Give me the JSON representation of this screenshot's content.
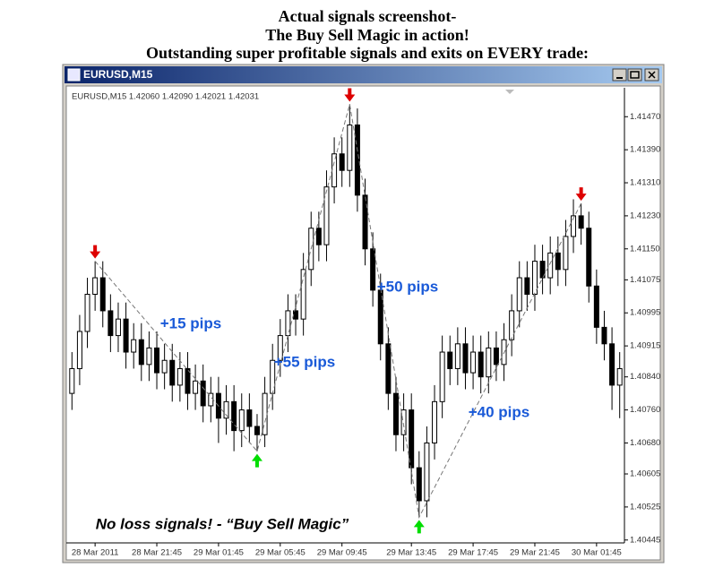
{
  "chart_data": {
    "type": "candlestick",
    "title": [
      "Actual signals screenshot-",
      "The Buy Sell Magic in action!",
      "Outstanding super profitable signals and exits on EVERY trade:"
    ],
    "window_title": "EURUSD,M15",
    "info": "EURUSD,M15  1.42060 1.42090 1.42021 1.42031",
    "categories": [
      null,
      null,
      null,
      "28 Mar 2011",
      null,
      null,
      null,
      null,
      null,
      null,
      null,
      "28 Mar 21:45",
      null,
      null,
      null,
      null,
      null,
      null,
      null,
      "29 Mar 01:45",
      null,
      null,
      null,
      null,
      null,
      null,
      null,
      "29 Mar 05:45",
      null,
      null,
      null,
      null,
      null,
      null,
      null,
      "29 Mar 09:45",
      null,
      null,
      null,
      null,
      null,
      null,
      null,
      null,
      "29 Mar 13:45",
      null,
      null,
      null,
      null,
      null,
      null,
      null,
      "29 Mar 17:45",
      null,
      null,
      null,
      null,
      null,
      null,
      null,
      "29 Mar 21:45",
      null,
      null,
      null,
      null,
      null,
      null,
      null,
      "30 Mar 01:45",
      null,
      null,
      null
    ],
    "open": [
      1.408,
      1.4086,
      1.4095,
      1.4104,
      1.4108,
      1.41,
      1.4094,
      1.4098,
      1.409,
      1.4093,
      1.4087,
      1.4091,
      1.4085,
      1.4088,
      1.4082,
      1.4086,
      1.408,
      1.4083,
      1.4077,
      1.408,
      1.4074,
      1.4078,
      1.4071,
      1.4076,
      1.4072,
      1.407,
      1.408,
      1.4088,
      1.4094,
      1.41,
      1.4098,
      1.411,
      1.412,
      1.4116,
      1.413,
      1.4138,
      1.4134,
      1.4145,
      1.4128,
      1.4115,
      1.4105,
      1.4092,
      1.408,
      1.407,
      1.4076,
      1.4062,
      1.4054,
      1.4068,
      1.4078,
      1.409,
      1.4086,
      1.4092,
      1.4085,
      1.409,
      1.4084,
      1.4091,
      1.4087,
      1.4093,
      1.41,
      1.4108,
      1.4104,
      1.4112,
      1.4108,
      1.4114,
      1.411,
      1.4118,
      1.4123,
      1.412,
      1.4106,
      1.4096,
      1.4092,
      1.4082
    ],
    "high": [
      1.409,
      1.4099,
      1.4108,
      1.4112,
      1.4112,
      1.4104,
      1.4102,
      1.4102,
      1.4097,
      1.4097,
      1.4095,
      1.4095,
      1.4092,
      1.4092,
      1.409,
      1.409,
      1.4087,
      1.4087,
      1.4084,
      1.4084,
      1.4082,
      1.4082,
      1.408,
      1.408,
      1.4075,
      1.4084,
      1.4092,
      1.4098,
      1.4104,
      1.4104,
      1.4114,
      1.4124,
      1.4124,
      1.4134,
      1.4142,
      1.4142,
      1.415,
      1.4149,
      1.4132,
      1.4119,
      1.4109,
      1.4096,
      1.4084,
      1.408,
      1.408,
      1.4066,
      1.4072,
      1.4082,
      1.4094,
      1.4094,
      1.4096,
      1.4096,
      1.4094,
      1.4094,
      1.4095,
      1.4095,
      1.4097,
      1.4104,
      1.4112,
      1.4112,
      1.4116,
      1.4116,
      1.4118,
      1.4118,
      1.4122,
      1.4127,
      1.4126,
      1.4124,
      1.411,
      1.41,
      1.4096,
      1.409
    ],
    "low": [
      1.4076,
      1.4082,
      1.4091,
      1.41,
      1.4096,
      1.409,
      1.409,
      1.4086,
      1.4086,
      1.4083,
      1.4083,
      1.4081,
      1.4081,
      1.4078,
      1.4078,
      1.4076,
      1.4076,
      1.4073,
      1.4073,
      1.4068,
      1.407,
      1.4066,
      1.4067,
      1.4068,
      1.4066,
      1.4067,
      1.4076,
      1.4084,
      1.409,
      1.4094,
      1.4094,
      1.4106,
      1.4112,
      1.4112,
      1.4126,
      1.413,
      1.413,
      1.4124,
      1.4111,
      1.4101,
      1.4088,
      1.4076,
      1.4066,
      1.4066,
      1.4058,
      1.405,
      1.405,
      1.4064,
      1.4074,
      1.4082,
      1.4082,
      1.4081,
      1.4081,
      1.408,
      1.408,
      1.4083,
      1.4083,
      1.4089,
      1.4096,
      1.41,
      1.41,
      1.4104,
      1.4104,
      1.4106,
      1.4106,
      1.4114,
      1.4116,
      1.4102,
      1.4092,
      1.4088,
      1.4076,
      1.4074
    ],
    "close": [
      1.4086,
      1.4095,
      1.4104,
      1.4108,
      1.41,
      1.4094,
      1.4098,
      1.409,
      1.4093,
      1.4087,
      1.4091,
      1.4085,
      1.4088,
      1.4082,
      1.4086,
      1.408,
      1.4083,
      1.4077,
      1.408,
      1.4074,
      1.4078,
      1.4071,
      1.4076,
      1.4072,
      1.407,
      1.408,
      1.4088,
      1.4094,
      1.41,
      1.4098,
      1.411,
      1.412,
      1.4116,
      1.413,
      1.4138,
      1.4134,
      1.4145,
      1.4128,
      1.4115,
      1.4105,
      1.4092,
      1.408,
      1.407,
      1.4076,
      1.4062,
      1.4054,
      1.4068,
      1.4078,
      1.409,
      1.4086,
      1.4092,
      1.4085,
      1.409,
      1.4084,
      1.4091,
      1.4087,
      1.4093,
      1.41,
      1.4108,
      1.4104,
      1.4112,
      1.4108,
      1.4114,
      1.411,
      1.4118,
      1.4123,
      1.412,
      1.4106,
      1.4096,
      1.4092,
      1.4082,
      1.4086
    ],
    "signals": [
      {
        "index": 3,
        "price": 1.4112,
        "direction": "down",
        "color": "#dd0000"
      },
      {
        "index": 24,
        "price": 1.4066,
        "direction": "up",
        "color": "#00dd00"
      },
      {
        "index": 36,
        "price": 1.415,
        "direction": "down",
        "color": "#dd0000"
      },
      {
        "index": 45,
        "price": 1.405,
        "direction": "up",
        "color": "#00dd00"
      },
      {
        "index": 66,
        "price": 1.4126,
        "direction": "down",
        "color": "#dd0000"
      }
    ],
    "annotations": [
      "+15 pips",
      "+55 pips",
      "+50 pips",
      "+40 pips",
      "No loss signals! - “Buy Sell Magic”"
    ],
    "ylim": [
      1.40438,
      1.4154
    ],
    "yticks": [
      {
        "value": 1.4147,
        "label": "1.41470"
      },
      {
        "value": 1.4139,
        "label": "1.41390"
      },
      {
        "value": 1.4131,
        "label": "1.41310"
      },
      {
        "value": 1.4123,
        "label": "1.41230"
      },
      {
        "value": 1.4115,
        "label": "1.41150"
      },
      {
        "value": 1.41075,
        "label": "1.41075"
      },
      {
        "value": 1.40995,
        "label": "1.40995"
      },
      {
        "value": 1.40915,
        "label": "1.40915"
      },
      {
        "value": 1.4084,
        "label": "1.40840"
      },
      {
        "value": 1.4076,
        "label": "1.40760"
      },
      {
        "value": 1.4068,
        "label": "1.40680"
      },
      {
        "value": 1.40605,
        "label": "1.40605"
      },
      {
        "value": 1.40525,
        "label": "1.40525"
      },
      {
        "value": 1.40445,
        "label": "1.40445"
      }
    ],
    "bull_color": "#ffffff",
    "bear_color": "#000000",
    "annotation_color": "#1a5ad8"
  }
}
